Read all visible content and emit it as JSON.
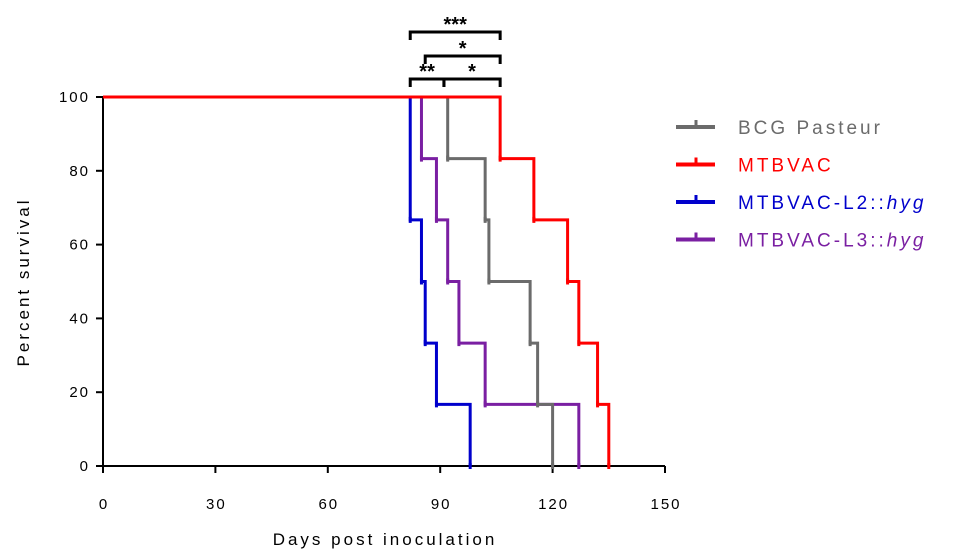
{
  "chart_data": {
    "type": "line",
    "subtype": "kaplan-meier-step",
    "xlabel": "Days post inoculation",
    "ylabel": "Percent survival",
    "xlim": [
      0,
      150
    ],
    "ylim": [
      0,
      100
    ],
    "xticks": [
      "0",
      "30",
      "60",
      "90",
      "120",
      "150"
    ],
    "yticks": [
      "0",
      "20",
      "40",
      "60",
      "80",
      "100"
    ],
    "grid": false,
    "legend_position": "right",
    "series": [
      {
        "name": "BCG Pasteur",
        "name_prefix": "BCG Pasteur",
        "name_italic": "",
        "color": "#6b6b6b",
        "x": [
          0,
          92,
          102,
          103,
          114,
          116,
          120
        ],
        "y": [
          100,
          83.3,
          66.7,
          50,
          33.3,
          16.7,
          0
        ]
      },
      {
        "name": "MTBVAC",
        "name_prefix": "MTBVAC",
        "name_italic": "",
        "color": "#ff0000",
        "x": [
          0,
          106,
          115,
          124,
          127,
          132,
          135
        ],
        "y": [
          100,
          83.3,
          66.7,
          50,
          33.3,
          16.7,
          0
        ]
      },
      {
        "name": "MTBVAC-L2::hyg",
        "name_prefix": "MTBVAC-L2::",
        "name_italic": "hyg",
        "color": "#0000cc",
        "x": [
          0,
          82,
          85,
          86,
          89,
          98
        ],
        "y": [
          100,
          66.7,
          50,
          33.3,
          16.7,
          0
        ]
      },
      {
        "name": "MTBVAC-L3::hyg",
        "name_prefix": "MTBVAC-L3::",
        "name_italic": "hyg",
        "color": "#7a1fa2",
        "x": [
          0,
          85,
          89,
          92,
          95,
          102,
          127
        ],
        "y": [
          100,
          83.3,
          66.7,
          50,
          33.3,
          16.7,
          0
        ]
      }
    ],
    "significance": [
      {
        "label": "**",
        "x1": 82,
        "x2": 91,
        "level": 1
      },
      {
        "label": "*",
        "x1": 91,
        "x2": 106,
        "level": 1
      },
      {
        "label": "*",
        "x1": 86,
        "x2": 106,
        "level": 2
      },
      {
        "label": "***",
        "x1": 82,
        "x2": 106,
        "level": 3
      }
    ]
  }
}
